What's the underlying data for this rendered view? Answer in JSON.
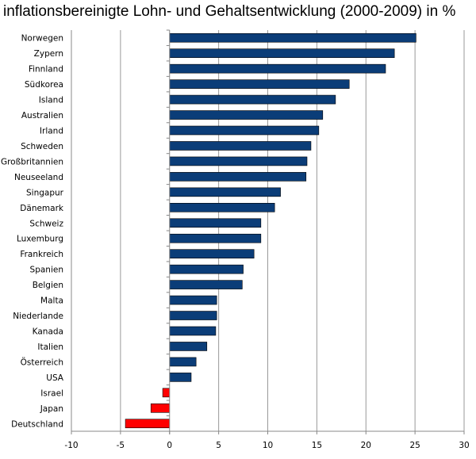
{
  "chart_data": {
    "type": "bar",
    "orientation": "horizontal",
    "title": "inflationsbereinigte Lohn- und Gehaltsentwicklung (2000-2009) in %",
    "xlabel": "",
    "ylabel": "",
    "xlim": [
      -10,
      30
    ],
    "xticks": [
      -10,
      -5,
      0,
      5,
      10,
      15,
      20,
      25,
      30
    ],
    "grid": true,
    "colors": {
      "positive": "#0b3d78",
      "negative": "#ff0000",
      "grid": "#999999",
      "axis": "#888888"
    },
    "categories": [
      "Norwegen",
      "Zypern",
      "Finnland",
      "Südkorea",
      "Island",
      "Australien",
      "Irland",
      "Schweden",
      "Großbritannien",
      "Neuseeland",
      "Singapur",
      "Dänemark",
      "Schweiz",
      "Luxemburg",
      "Frankreich",
      "Spanien",
      "Belgien",
      "Malta",
      "Niederlande",
      "Kanada",
      "Italien",
      "Österreich",
      "USA",
      "Israel",
      "Japan",
      "Deutschland"
    ],
    "values": [
      25.1,
      22.9,
      22.0,
      18.3,
      16.9,
      15.6,
      15.2,
      14.4,
      14.0,
      13.9,
      11.3,
      10.7,
      9.3,
      9.3,
      8.6,
      7.5,
      7.4,
      4.8,
      4.8,
      4.7,
      3.8,
      2.7,
      2.2,
      -0.7,
      -1.9,
      -4.5
    ]
  }
}
